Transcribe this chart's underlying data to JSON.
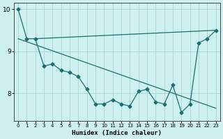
{
  "background_color": "#cff0f0",
  "grid_color": "#aed8d8",
  "line_color": "#1a7070",
  "zigzag": {
    "x": [
      0,
      1,
      2,
      3,
      4,
      5,
      6,
      7,
      8,
      9,
      10,
      11,
      12,
      13,
      14,
      15,
      16,
      17,
      18,
      19,
      20,
      21,
      22,
      23
    ],
    "y": [
      10.0,
      9.3,
      9.3,
      8.65,
      8.7,
      8.55,
      8.5,
      8.4,
      8.1,
      7.75,
      7.75,
      7.85,
      7.75,
      7.7,
      8.05,
      8.1,
      7.8,
      7.75,
      8.2,
      7.55,
      7.75,
      9.2,
      9.3,
      9.5
    ]
  },
  "line_down": {
    "x1": 0,
    "y1": 9.3,
    "x2": 23,
    "y2": 7.65
  },
  "line_up": {
    "x1": 2,
    "y1": 9.3,
    "x2": 23,
    "y2": 9.5
  },
  "xlabel": "Humidex (Indice chaleur)",
  "xlim": [
    -0.5,
    23.5
  ],
  "ylim": [
    7.35,
    10.15
  ],
  "yticks": [
    8,
    9,
    10
  ],
  "xticks": [
    0,
    1,
    2,
    3,
    4,
    5,
    6,
    7,
    8,
    9,
    10,
    11,
    12,
    13,
    14,
    15,
    16,
    17,
    18,
    19,
    20,
    21,
    22,
    23
  ],
  "marker": "D",
  "marker_size": 2.5,
  "line_width": 0.9
}
